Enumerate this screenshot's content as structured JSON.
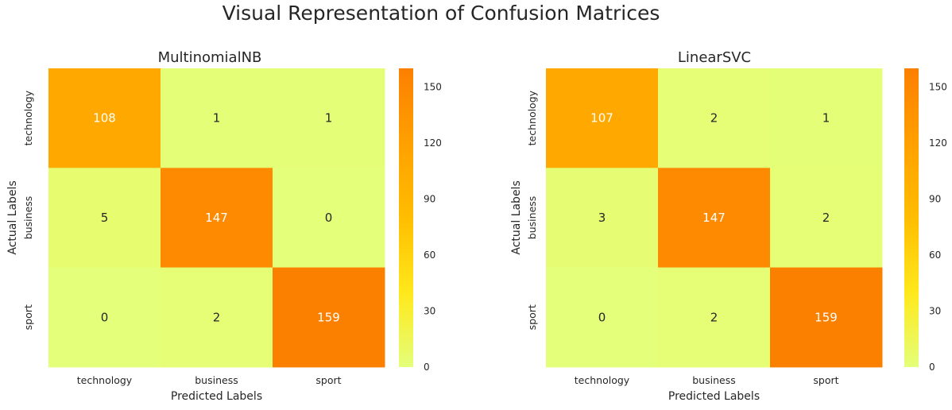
{
  "title": "Visual Representation of Confusion Matrices",
  "chart_data": [
    {
      "type": "heatmap",
      "title": "MultinomialNB",
      "xlabel": "Predicted Labels",
      "ylabel": "Actual Labels",
      "x_categories": [
        "technology",
        "business",
        "sport"
      ],
      "y_categories": [
        "technology",
        "business",
        "sport"
      ],
      "values": [
        [
          108,
          1,
          1
        ],
        [
          5,
          147,
          0
        ],
        [
          0,
          2,
          159
        ]
      ],
      "colorbar": {
        "range": [
          0,
          160
        ],
        "ticks": [
          "0",
          "30",
          "60",
          "90",
          "120",
          "150"
        ],
        "colormap": "Wistia"
      }
    },
    {
      "type": "heatmap",
      "title": "LinearSVC",
      "xlabel": "Predicted Labels",
      "ylabel": "Actual Labels",
      "x_categories": [
        "technology",
        "business",
        "sport"
      ],
      "y_categories": [
        "technology",
        "business",
        "sport"
      ],
      "values": [
        [
          107,
          2,
          1
        ],
        [
          3,
          147,
          2
        ],
        [
          0,
          2,
          159
        ]
      ],
      "colorbar": {
        "range": [
          0,
          160
        ],
        "ticks": [
          "0",
          "30",
          "60",
          "90",
          "120",
          "150"
        ],
        "colormap": "Wistia"
      }
    }
  ],
  "colors": {
    "colormap_stops": [
      "#e4ff7a",
      "#ffe81a",
      "#ffbd00",
      "#ffa000",
      "#fc7f00"
    ],
    "text_dark": "#262626",
    "text_light": "#ffffff"
  }
}
